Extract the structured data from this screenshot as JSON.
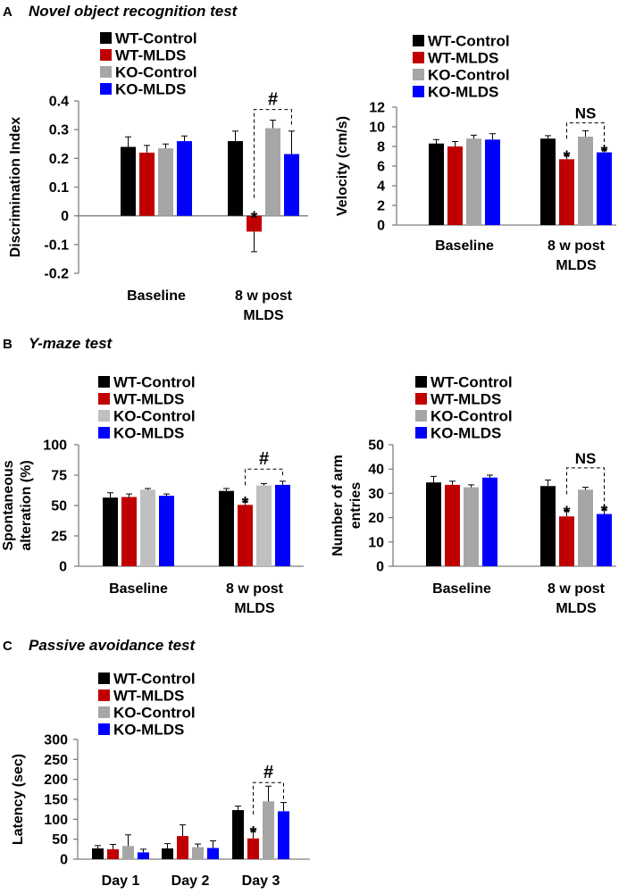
{
  "sections": [
    {
      "letter": "A",
      "title": "Novel object recognition test"
    },
    {
      "letter": "B",
      "title": "Y-maze test"
    },
    {
      "letter": "C",
      "title": "Passive avoidance test"
    }
  ],
  "colors": {
    "wt_control": "#000000",
    "wt_mlds": "#c00000",
    "ko_control": "#a6a6a6",
    "ko_control_light": "#c0c0c0",
    "ko_mlds": "#0000ff"
  },
  "chart_data": [
    {
      "id": "nor_di",
      "type": "bar",
      "ylabel": "Discrimination Index",
      "ylim": [
        -0.2,
        0.4
      ],
      "yticks": [
        -0.2,
        -0.1,
        0,
        0.1,
        0.2,
        0.3,
        0.4
      ],
      "ytick_labels": [
        "-0.2",
        "-0.1",
        "0",
        "0.1",
        "0.2",
        "0.3",
        "0.4"
      ],
      "categories": [
        [
          "Baseline"
        ],
        [
          "8 w post",
          "MLDS"
        ]
      ],
      "legend": [
        "WT-Control",
        "WT-MLDS",
        "KO-Control",
        "KO-MLDS"
      ],
      "series": [
        {
          "name": "WT-Control",
          "color": "#000000",
          "values": [
            0.24,
            0.26
          ],
          "errors": [
            0.035,
            0.035
          ]
        },
        {
          "name": "WT-MLDS",
          "color": "#c00000",
          "values": [
            0.22,
            -0.055
          ],
          "errors": [
            0.025,
            0.07
          ]
        },
        {
          "name": "KO-Control",
          "color": "#a6a6a6",
          "values": [
            0.235,
            0.305
          ],
          "errors": [
            0.015,
            0.028
          ]
        },
        {
          "name": "KO-MLDS",
          "color": "#0000ff",
          "values": [
            0.26,
            0.215
          ],
          "errors": [
            0.018,
            0.08
          ]
        }
      ],
      "stars": [
        {
          "cat": 1,
          "series": 1,
          "label": "*"
        }
      ],
      "brackets": [
        {
          "cat": 1,
          "from": 1,
          "to": 3,
          "y": 0.37,
          "label": "#"
        }
      ]
    },
    {
      "id": "nor_vel",
      "type": "bar",
      "ylabel": "Velocity (cm/s)",
      "ylim": [
        0,
        12
      ],
      "yticks": [
        0,
        2,
        4,
        6,
        8,
        10,
        12
      ],
      "ytick_labels": [
        "0",
        "2",
        "4",
        "6",
        "8",
        "10",
        "12"
      ],
      "categories": [
        [
          "Baseline"
        ],
        [
          "8 w post",
          "MLDS"
        ]
      ],
      "legend": [
        "WT-Control",
        "WT-MLDS",
        "KO-Control",
        "KO-MLDS"
      ],
      "series": [
        {
          "name": "WT-Control",
          "color": "#000000",
          "values": [
            8.3,
            8.8
          ],
          "errors": [
            0.4,
            0.3
          ]
        },
        {
          "name": "WT-MLDS",
          "color": "#c00000",
          "values": [
            8.0,
            6.7
          ],
          "errors": [
            0.5,
            0.45
          ]
        },
        {
          "name": "KO-Control",
          "color": "#a6a6a6",
          "values": [
            8.8,
            9.0
          ],
          "errors": [
            0.35,
            0.6
          ]
        },
        {
          "name": "KO-MLDS",
          "color": "#0000ff",
          "values": [
            8.7,
            7.4
          ],
          "errors": [
            0.6,
            0.3
          ]
        }
      ],
      "stars": [
        {
          "cat": 1,
          "series": 1,
          "label": "*"
        },
        {
          "cat": 1,
          "series": 3,
          "label": "*"
        }
      ],
      "brackets": [
        {
          "cat": 1,
          "from": 1,
          "to": 3,
          "y": 10.4,
          "label": "NS"
        }
      ]
    },
    {
      "id": "ymaze_alt",
      "type": "bar",
      "ylabel": [
        "Spontaneous",
        "alteration (%)"
      ],
      "ylim": [
        0,
        100
      ],
      "yticks": [
        0,
        25,
        50,
        75,
        100
      ],
      "ytick_labels": [
        "0",
        "25",
        "50",
        "75",
        "100"
      ],
      "categories": [
        [
          "Baseline"
        ],
        [
          "8 w post",
          "MLDS"
        ]
      ],
      "legend": [
        "WT-Control",
        "WT-MLDS",
        "KO-Control",
        "KO-MLDS"
      ],
      "series": [
        {
          "name": "WT-Control",
          "color": "#000000",
          "values": [
            56.5,
            62
          ],
          "errors": [
            4,
            2
          ]
        },
        {
          "name": "WT-MLDS",
          "color": "#c00000",
          "values": [
            57,
            50.5
          ],
          "errors": [
            2.5,
            3
          ]
        },
        {
          "name": "KO-Control",
          "color": "#c0c0c0",
          "values": [
            63,
            66.5
          ],
          "errors": [
            1,
            1.5
          ]
        },
        {
          "name": "KO-MLDS",
          "color": "#0000ff",
          "values": [
            58,
            67
          ],
          "errors": [
            1.5,
            3
          ]
        }
      ],
      "stars": [
        {
          "cat": 1,
          "series": 1,
          "label": "*"
        }
      ],
      "brackets": [
        {
          "cat": 1,
          "from": 1,
          "to": 3,
          "y": 80,
          "label": "#"
        }
      ]
    },
    {
      "id": "ymaze_arm",
      "type": "bar",
      "ylabel": [
        "Number of arm",
        "entries"
      ],
      "ylim": [
        0,
        50
      ],
      "yticks": [
        0,
        10,
        20,
        30,
        40,
        50
      ],
      "ytick_labels": [
        "0",
        "10",
        "20",
        "30",
        "40",
        "50"
      ],
      "categories": [
        [
          "Baseline"
        ],
        [
          "8 w post",
          "MLDS"
        ]
      ],
      "legend": [
        "WT-Control",
        "WT-MLDS",
        "KO-Control",
        "KO-MLDS"
      ],
      "series": [
        {
          "name": "WT-Control",
          "color": "#000000",
          "values": [
            34.5,
            33
          ],
          "errors": [
            2.5,
            2.5
          ]
        },
        {
          "name": "WT-MLDS",
          "color": "#c00000",
          "values": [
            33.5,
            20.5
          ],
          "errors": [
            1.5,
            2.5
          ]
        },
        {
          "name": "KO-Control",
          "color": "#a6a6a6",
          "values": [
            32.5,
            31.5
          ],
          "errors": [
            1,
            1
          ]
        },
        {
          "name": "KO-MLDS",
          "color": "#0000ff",
          "values": [
            36.5,
            21.5
          ],
          "errors": [
            1,
            2
          ]
        }
      ],
      "stars": [
        {
          "cat": 1,
          "series": 1,
          "label": "*"
        },
        {
          "cat": 1,
          "series": 3,
          "label": "*"
        }
      ],
      "brackets": [
        {
          "cat": 1,
          "from": 1,
          "to": 3,
          "y": 40.5,
          "label": "NS"
        }
      ]
    },
    {
      "id": "passive",
      "type": "bar",
      "ylabel": "Latency (sec)",
      "ylim": [
        0,
        300
      ],
      "yticks": [
        0,
        50,
        100,
        150,
        200,
        250,
        300
      ],
      "ytick_labels": [
        "0",
        "50",
        "100",
        "150",
        "200",
        "250",
        "300"
      ],
      "categories": [
        [
          "Day 1"
        ],
        [
          "Day 2"
        ],
        [
          "Day 3"
        ]
      ],
      "legend": [
        "WT-Control",
        "WT-MLDS",
        "KO-Control",
        "KO-MLDS"
      ],
      "series": [
        {
          "name": "WT-Control",
          "color": "#000000",
          "values": [
            27,
            27,
            123
          ],
          "errors": [
            7,
            12,
            10
          ]
        },
        {
          "name": "WT-MLDS",
          "color": "#c00000",
          "values": [
            25,
            58,
            52
          ],
          "errors": [
            12,
            28,
            20
          ]
        },
        {
          "name": "KO-Control",
          "color": "#a6a6a6",
          "values": [
            33,
            30,
            145
          ],
          "errors": [
            28,
            8,
            38
          ]
        },
        {
          "name": "KO-MLDS",
          "color": "#0000ff",
          "values": [
            17,
            28,
            120
          ],
          "errors": [
            8,
            18,
            22
          ]
        }
      ],
      "stars": [
        {
          "cat": 2,
          "series": 1,
          "label": "*"
        }
      ],
      "brackets": [
        {
          "cat": 2,
          "from": 1,
          "to": 3,
          "y": 192,
          "label": "#"
        }
      ]
    }
  ]
}
